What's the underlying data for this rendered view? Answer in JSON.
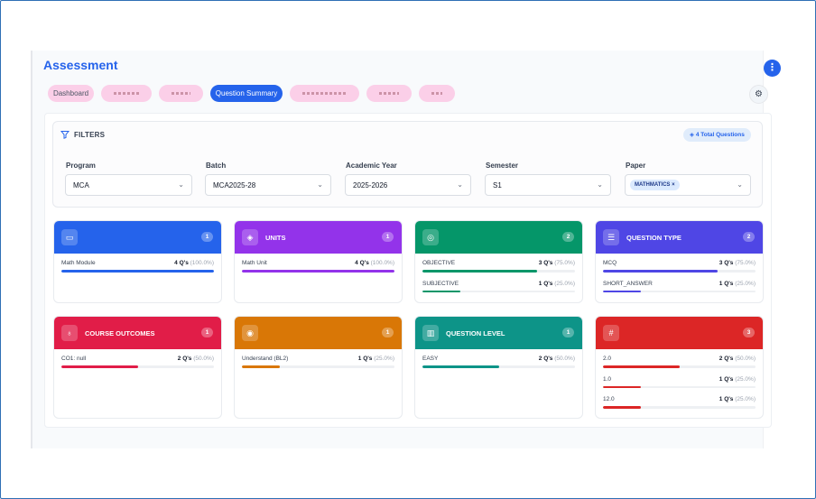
{
  "title": "Assessment",
  "tabs": [
    {
      "label": "Dashboard",
      "active": false
    },
    {
      "label": "",
      "active": false
    },
    {
      "label": "",
      "active": false
    },
    {
      "label": "Question Summary",
      "active": true
    },
    {
      "label": "",
      "active": false
    },
    {
      "label": "",
      "active": false
    },
    {
      "label": "",
      "active": false
    }
  ],
  "filters": {
    "heading": "FILTERS",
    "total_badge": "4 Total Questions",
    "program": {
      "label": "Program",
      "value": "MCA"
    },
    "batch": {
      "label": "Batch",
      "value": "MCA2025-28"
    },
    "academic_year": {
      "label": "Academic Year",
      "value": "2025-2026"
    },
    "semester": {
      "label": "Semester",
      "value": "S1"
    },
    "paper": {
      "label": "Paper",
      "chip": "MATHMATICS",
      "chip_remove": "×"
    }
  },
  "cards": [
    {
      "title": "",
      "count": "1",
      "color": "#2563eb",
      "icon": "book-icon",
      "rows": [
        {
          "label": "Math Module",
          "count": "4 Q's",
          "pct": "(100.0%)",
          "fraction": 1.0
        }
      ]
    },
    {
      "title": "UNITS",
      "count": "1",
      "color": "#9333ea",
      "icon": "layers-icon",
      "rows": [
        {
          "label": "Math Unit",
          "count": "4 Q's",
          "pct": "(100.0%)",
          "fraction": 1.0
        }
      ]
    },
    {
      "title": "",
      "count": "2",
      "color": "#059669",
      "icon": "target-icon",
      "rows": [
        {
          "label": "OBJECTIVE",
          "count": "3 Q's",
          "pct": "(75.0%)",
          "fraction": 0.75
        },
        {
          "label": "SUBJECTIVE",
          "count": "1 Q's",
          "pct": "(25.0%)",
          "fraction": 0.25
        }
      ]
    },
    {
      "title": "QUESTION TYPE",
      "count": "2",
      "color": "#4f46e5",
      "icon": "list-icon",
      "rows": [
        {
          "label": "MCQ",
          "count": "3 Q's",
          "pct": "(75.0%)",
          "fraction": 0.75
        },
        {
          "label": "SHORT_ANSWER",
          "count": "1 Q's",
          "pct": "(25.0%)",
          "fraction": 0.25
        }
      ]
    },
    {
      "title": "COURSE OUTCOMES",
      "count": "1",
      "color": "#e11d48",
      "icon": "award-icon",
      "rows": [
        {
          "label": "CO1: null",
          "count": "2 Q's",
          "pct": "(50.0%)",
          "fraction": 0.5
        }
      ]
    },
    {
      "title": "",
      "count": "1",
      "color": "#d97706",
      "icon": "brain-icon",
      "rows": [
        {
          "label": "Understand (BL2)",
          "count": "1 Q's",
          "pct": "(25.0%)",
          "fraction": 0.25
        }
      ]
    },
    {
      "title": "QUESTION LEVEL",
      "count": "1",
      "color": "#0d9488",
      "icon": "bar-chart-icon",
      "rows": [
        {
          "label": "EASY",
          "count": "2 Q's",
          "pct": "(50.0%)",
          "fraction": 0.5
        }
      ]
    },
    {
      "title": "",
      "count": "3",
      "color": "#dc2626",
      "icon": "hash-icon",
      "rows": [
        {
          "label": "2.0",
          "count": "2 Q's",
          "pct": "(50.0%)",
          "fraction": 0.5
        },
        {
          "label": "1.0",
          "count": "1 Q's",
          "pct": "(25.0%)",
          "fraction": 0.25
        },
        {
          "label": "12.0",
          "count": "1 Q's",
          "pct": "(25.0%)",
          "fraction": 0.25
        }
      ]
    }
  ]
}
